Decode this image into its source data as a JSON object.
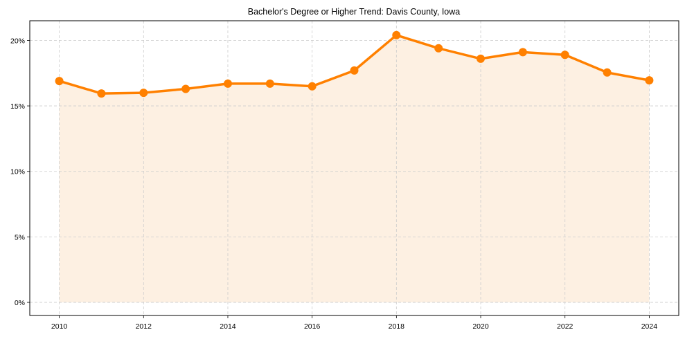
{
  "chart_data": {
    "type": "line",
    "title": "Bachelor's Degree or Higher Trend: Davis County, Iowa",
    "xlabel": "",
    "ylabel": "",
    "x": [
      2010,
      2011,
      2012,
      2013,
      2014,
      2015,
      2016,
      2017,
      2018,
      2019,
      2020,
      2021,
      2022,
      2023,
      2024
    ],
    "series": [
      {
        "name": "Bachelor's Degree or Higher",
        "values": [
          16.9,
          15.95,
          16.0,
          16.3,
          16.7,
          16.7,
          16.5,
          17.7,
          20.4,
          19.4,
          18.6,
          19.1,
          18.9,
          17.55,
          16.95
        ],
        "unit": "%"
      }
    ],
    "x_ticks": [
      "2010",
      "2012",
      "2014",
      "2016",
      "2018",
      "2020",
      "2022",
      "2024"
    ],
    "y_ticks": [
      "0%",
      "5%",
      "10%",
      "15%",
      "20%"
    ],
    "xlim": [
      2009.3,
      2024.7
    ],
    "ylim": [
      -1.0,
      21.5
    ],
    "grid": true,
    "grid_style": "dashed",
    "legend": null,
    "fill_under_line": true,
    "colors": {
      "line": "#ff8000",
      "marker": "#ff8000",
      "fill": "#fdf0e2",
      "grid": "#cccccc",
      "axis": "#000000"
    }
  }
}
